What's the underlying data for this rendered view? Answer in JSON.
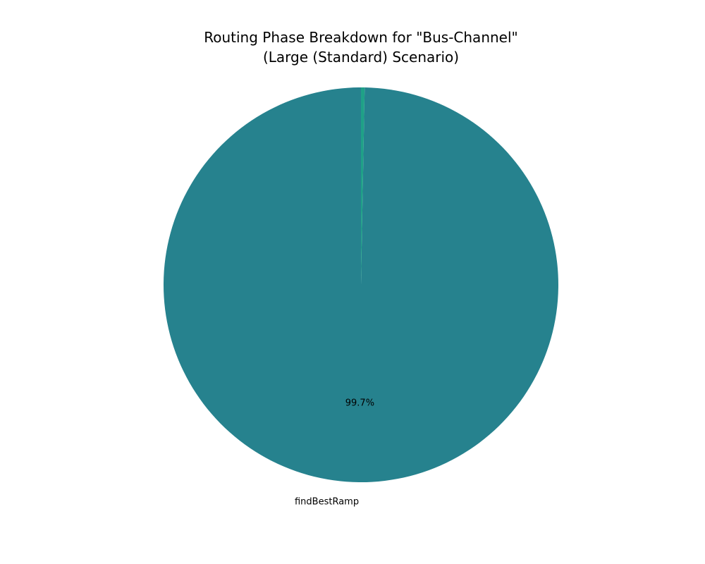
{
  "chart_data": {
    "type": "pie",
    "title_lines": [
      "Routing Phase Breakdown for \"Bus-Channel\"",
      "(Large (Standard) Scenario)"
    ],
    "start_angle_deg": 90,
    "direction": "counterclockwise",
    "slices": [
      {
        "label": "findBestRamp",
        "value": 99.7,
        "pct_label": "99.7%",
        "color": "#26828e"
      },
      {
        "label": "",
        "value": 0.3,
        "pct_label": "",
        "color": "#1fa187"
      }
    ]
  }
}
